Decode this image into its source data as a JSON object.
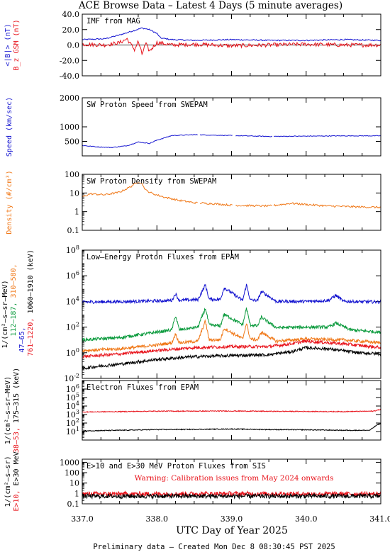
{
  "title": "ACE Browse Data  – Latest 4 Days (5 minute averages)",
  "xlabel": "UTC Day of Year 2025",
  "footer": "Preliminary data – Created Mon Dec  8 08:30:45 PST 2025",
  "x_ticks": [
    "337.0",
    "338.0",
    "339.0",
    "340.0",
    "341.0"
  ],
  "x_range": [
    337.0,
    341.0
  ],
  "colors": {
    "black": "#000000",
    "red": "#e8141c",
    "blue": "#1414d0",
    "green": "#0a9a3c",
    "orange": "#f07818"
  },
  "chart_data": [
    {
      "id": "imf",
      "type": "line",
      "title": "IMF from MAG",
      "ylim": [
        -40,
        40
      ],
      "y_ticks": [
        "40.0",
        "20.0",
        "0.0",
        "-20.0",
        "-40.0"
      ],
      "ylabel_parts": [
        {
          "text": "<|B|> (nT)",
          "color": "blue"
        },
        {
          "text": "B_z GSM (nT)",
          "color": "red"
        }
      ],
      "series": [
        {
          "name": "<|B|>",
          "color": "blue",
          "x": [
            337.0,
            337.3,
            337.5,
            337.7,
            337.8,
            337.9,
            338.0,
            338.05,
            338.2,
            338.5,
            339.0,
            339.5,
            340.0,
            340.5,
            341.0
          ],
          "y": [
            7,
            8,
            13,
            19,
            22,
            20,
            15,
            9,
            7,
            6,
            7,
            6,
            6,
            7,
            6
          ]
        },
        {
          "name": "B_z GSM",
          "color": "red",
          "x": [
            337.0,
            337.3,
            337.5,
            337.6,
            337.7,
            337.75,
            337.8,
            337.85,
            337.9,
            338.0,
            338.2,
            338.5,
            339.0,
            339.5,
            340.0,
            340.5,
            341.0
          ],
          "y": [
            1,
            0,
            3,
            8,
            -6,
            5,
            -12,
            2,
            -8,
            3,
            0,
            1,
            -1,
            0,
            1,
            0,
            0
          ]
        }
      ]
    },
    {
      "id": "speed",
      "type": "line",
      "title": "SW Proton Speed from SWEPAM",
      "ylim": [
        0,
        2000
      ],
      "y_ticks": [
        "2000",
        "1000",
        "500"
      ],
      "ylabel_parts": [
        {
          "text": "Speed (km/sec)",
          "color": "blue"
        }
      ],
      "series": [
        {
          "name": "Speed",
          "color": "blue",
          "x": [
            337.0,
            337.2,
            337.4,
            337.6,
            337.75,
            337.9,
            338.0,
            338.2,
            338.5,
            339.0,
            339.5,
            340.0,
            340.5,
            341.0
          ],
          "y": [
            360,
            310,
            290,
            350,
            480,
            430,
            540,
            700,
            730,
            700,
            670,
            680,
            690,
            690
          ]
        }
      ]
    },
    {
      "id": "density",
      "type": "line",
      "title": "SW Proton Density from SWEPAM",
      "ylog": true,
      "ylim": [
        0.1,
        100
      ],
      "y_ticks": [
        "100",
        "10",
        "1",
        "0.1"
      ],
      "ylabel_parts": [
        {
          "text": "Density (#/cm³)",
          "color": "orange"
        }
      ],
      "series": [
        {
          "name": "Density",
          "color": "orange",
          "x": [
            337.0,
            337.1,
            337.3,
            337.5,
            337.65,
            337.75,
            337.8,
            337.85,
            337.95,
            338.1,
            338.3,
            338.5,
            338.8,
            339.0,
            339.5,
            339.8,
            340.0,
            340.3,
            340.7,
            341.0
          ],
          "y": [
            6,
            9,
            8,
            11,
            22,
            40,
            32,
            14,
            9,
            6,
            4,
            3,
            2.6,
            2.2,
            2.0,
            2.8,
            2.4,
            2.0,
            1.8,
            1.7
          ]
        }
      ]
    },
    {
      "id": "epam_p",
      "type": "line",
      "title": "Low–Energy Proton Fluxes from EPAM",
      "ylog": true,
      "ylim": [
        0.01,
        100000000
      ],
      "y_ticks": [
        "10^8",
        "10^6",
        "10^4",
        "10^2",
        "10^0",
        "10^-2"
      ],
      "ylabel_parts": [
        {
          "text": "1/(cm²–s–sr–MeV)",
          "color": "black"
        },
        {
          "text": "47–65,",
          "color": "blue"
        },
        {
          "text": "112–187,",
          "color": "green"
        },
        {
          "text": "310–580,",
          "color": "orange"
        },
        {
          "text": "761–1220,",
          "color": "red"
        },
        {
          "text": "1060–1910 (keV)",
          "color": "black"
        }
      ],
      "series": [
        {
          "name": "47–65",
          "color": "blue",
          "x": [
            337.0,
            337.5,
            338.0,
            338.2,
            338.25,
            338.3,
            338.55,
            338.65,
            338.7,
            338.85,
            338.9,
            339.15,
            339.2,
            339.25,
            339.35,
            339.4,
            339.6,
            340.0,
            340.3,
            340.4,
            340.5,
            341.0
          ],
          "y": [
            9000,
            9500,
            11000,
            12000,
            40000,
            12000,
            14000,
            200000,
            15000,
            14000,
            120000,
            12000,
            200000,
            13000,
            12000,
            60000,
            10000,
            10000,
            12000,
            30000,
            10000,
            9000
          ]
        },
        {
          "name": "112–187",
          "color": "green",
          "x": [
            337.0,
            337.5,
            338.0,
            338.2,
            338.25,
            338.3,
            338.55,
            338.65,
            338.7,
            338.85,
            338.9,
            339.15,
            339.2,
            339.25,
            339.35,
            339.4,
            339.6,
            340.0,
            340.3,
            340.4,
            340.6,
            341.0
          ],
          "y": [
            10,
            15,
            40,
            60,
            800,
            60,
            100,
            3000,
            150,
            120,
            1000,
            150,
            3000,
            150,
            120,
            600,
            90,
            100,
            100,
            200,
            60,
            40
          ]
        },
        {
          "name": "310–580",
          "color": "orange",
          "x": [
            337.0,
            337.5,
            338.0,
            338.2,
            338.25,
            338.3,
            338.55,
            338.65,
            338.7,
            338.85,
            338.9,
            339.15,
            339.2,
            339.25,
            339.35,
            339.4,
            339.6,
            340.0,
            340.5,
            341.0
          ],
          "y": [
            1.5,
            2,
            4,
            6,
            30,
            6,
            8,
            300,
            10,
            10,
            80,
            12,
            200,
            12,
            10,
            40,
            8,
            12,
            10,
            6
          ]
        },
        {
          "name": "761–1220",
          "color": "red",
          "x": [
            337.0,
            337.5,
            338.0,
            338.5,
            339.0,
            339.5,
            339.8,
            340.0,
            340.5,
            341.0
          ],
          "y": [
            0.5,
            0.8,
            1.5,
            2.5,
            3,
            3,
            5,
            8,
            5,
            2.5
          ]
        },
        {
          "name": "1060–1910",
          "color": "black",
          "x": [
            337.0,
            337.3,
            337.6,
            338.0,
            338.5,
            339.0,
            339.5,
            339.8,
            340.0,
            340.3,
            340.7,
            341.0
          ],
          "y": [
            0.06,
            0.1,
            0.15,
            0.3,
            0.5,
            0.6,
            0.7,
            1.2,
            2.5,
            2.0,
            1.0,
            0.8
          ]
        }
      ]
    },
    {
      "id": "epam_e",
      "type": "line",
      "title": "Electron Fluxes from EPAM",
      "ylog": true,
      "ylim": [
        1,
        10000000
      ],
      "y_ticks": [
        "10^6",
        "10^5",
        "10^4",
        "10^3",
        "10^2",
        "10^1"
      ],
      "ylabel_parts": [
        {
          "text": "1/(cm²–s–sr–MeV)",
          "color": "black"
        },
        {
          "text": "38–53,",
          "color": "red"
        },
        {
          "text": "175–315 (keV)",
          "color": "black"
        }
      ],
      "series": [
        {
          "name": "38–53",
          "color": "red",
          "x": [
            337.0,
            337.5,
            338.0,
            338.5,
            339.0,
            339.5,
            340.0,
            340.5,
            340.9,
            341.0
          ],
          "y": [
            2000,
            2200,
            2500,
            2500,
            2600,
            2400,
            2300,
            2200,
            2500,
            4000
          ]
        },
        {
          "name": "175–315",
          "color": "black",
          "x": [
            337.0,
            337.5,
            338.0,
            338.5,
            339.0,
            339.5,
            340.0,
            340.5,
            340.85,
            340.95,
            341.0
          ],
          "y": [
            12,
            14,
            17,
            18,
            20,
            17,
            16,
            14,
            14,
            60,
            90
          ]
        }
      ]
    },
    {
      "id": "sis",
      "type": "line",
      "title": "E>10 and E>30 MeV Proton Fluxes from SIS",
      "ylog": true,
      "ylim": [
        0.1,
        2000
      ],
      "y_ticks": [
        "1000",
        "100",
        "10",
        "1",
        "0.1"
      ],
      "ylabel_parts": [
        {
          "text": "1/(cm²–s–sr)",
          "color": "black"
        },
        {
          "text": "E>10,",
          "color": "red"
        },
        {
          "text": "E>30 MeV",
          "color": "black"
        }
      ],
      "annotation": "Warning: Calibration issues from May 2024 onwards",
      "series": [
        {
          "name": "E>10",
          "color": "red",
          "x": [
            337.0,
            338.0,
            339.0,
            340.0,
            341.0
          ],
          "y": [
            0.9,
            0.9,
            0.95,
            0.9,
            0.9
          ]
        },
        {
          "name": "E>30",
          "color": "black",
          "x": [
            337.0,
            338.0,
            339.0,
            340.0,
            341.0
          ],
          "y": [
            0.55,
            0.55,
            0.55,
            0.55,
            0.55
          ]
        }
      ]
    }
  ]
}
